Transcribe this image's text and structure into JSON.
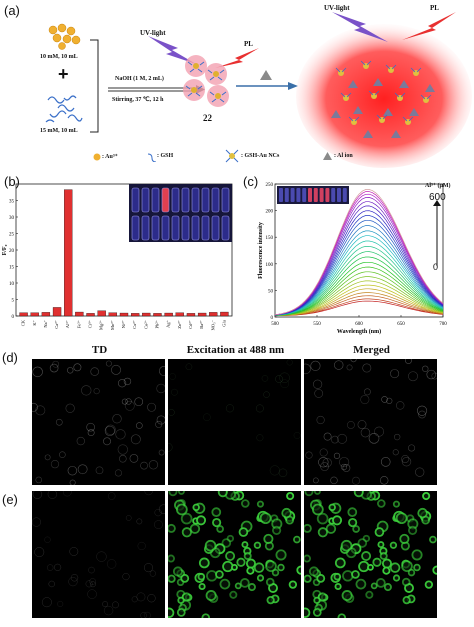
{
  "panel_a": {
    "label": "(a)",
    "reagent_top": "10 mM, 10 mL",
    "plus": "+",
    "reagent_bottom": "15 mM, 10 mL",
    "condition_1": "NaOH (1 M, 2 mL)",
    "condition_2": "Stirring,  37 ℃,   12 h",
    "uv_left": "UV-light",
    "pl_left": "PL",
    "product_number": "22",
    "uv_right": "UV-light",
    "pl_right": "PL",
    "legend_au": ": Au³⁺",
    "legend_gsh": ": GSH",
    "legend_nc": ": GSH-Au NCs",
    "legend_al": ": Al ion"
  },
  "panel_b": {
    "label": "(b)",
    "ylabel": "F/F₀",
    "colors": {
      "bar": "#e03030",
      "vial": "#2c2b8a"
    }
  },
  "panel_c": {
    "label": "(c)",
    "conc_label": "Al³⁺ (μM)",
    "conc_max": "600",
    "conc_min": "0",
    "colors": {
      "curve_top": "#d4a0a0"
    }
  },
  "panel_d": {
    "label": "(d)",
    "col_1": "TD",
    "col_2": "Excitation at 488 nm",
    "col_3": "Merged"
  },
  "panel_e": {
    "label": "(e)",
    "colors": {
      "cell": "#3cd03c"
    }
  },
  "chart_data": [
    {
      "type": "bar",
      "title": "",
      "xlabel": "",
      "ylabel": "F/F₀",
      "ylim": [
        0,
        40
      ],
      "yticks": [
        0,
        5,
        10,
        15,
        20,
        25,
        30,
        35
      ],
      "categories": [
        "CK",
        "K⁺",
        "Na⁺",
        "Ca²⁺",
        "Al³⁺",
        "Fe³⁺",
        "Cr³⁺",
        "Mg²⁺",
        "Mn²⁺",
        "Ni²⁺",
        "Cu²⁺",
        "Co²⁺",
        "Pb²⁺",
        "Ag⁺",
        "Zn²⁺",
        "Cd²⁺",
        "Ba²⁺",
        "NO₃⁻",
        "Glu"
      ],
      "values": [
        1.0,
        1.0,
        1.1,
        2.6,
        38.3,
        1.2,
        0.8,
        1.6,
        1.0,
        0.9,
        0.8,
        0.9,
        0.8,
        0.9,
        1.0,
        0.8,
        0.9,
        1.1,
        1.2
      ],
      "grid": false
    },
    {
      "type": "line",
      "title": "",
      "xlabel": "Wavelength (nm)",
      "ylabel": "Fluorescence intensity",
      "xlim": [
        500,
        700
      ],
      "ylim": [
        0,
        250
      ],
      "xticks": [
        500,
        550,
        600,
        650,
        700
      ],
      "yticks": [
        0,
        50,
        100,
        150,
        200,
        250
      ],
      "peak_wavelength": 610,
      "series_peaks": [
        28,
        32,
        38,
        44,
        51,
        58,
        66,
        74,
        83,
        92,
        101,
        111,
        121,
        131,
        141,
        151,
        160,
        170,
        180,
        189,
        198,
        207,
        215,
        223,
        229,
        234,
        238
      ],
      "grid": false
    }
  ]
}
